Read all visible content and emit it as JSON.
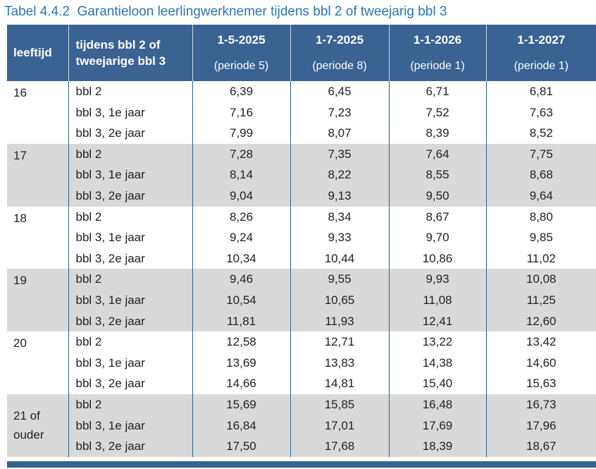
{
  "title": {
    "full": "Tabel 4.4.2  Garantieloon leerlingwerknemer tijdens bbl 2 of tweejarig bbl 3"
  },
  "colors": {
    "title_text": "#2e74b5",
    "header_bg": "#3a6292",
    "alt_row_bg": "#d9d9d9",
    "grid_line": "#2e6186",
    "bottom_bar": "#35618f"
  },
  "table": {
    "columns": [
      {
        "line1": "leeftijd",
        "line2": ""
      },
      {
        "line1": "tijdens bbl 2 of",
        "line2": "tweejarige bbl 3"
      },
      {
        "line1": "1-5-2025",
        "line2": "(periode 5)"
      },
      {
        "line1": "1-7-2025",
        "line2": "(periode 8)"
      },
      {
        "line1": "1-1-2026",
        "line2": "(periode 1)"
      },
      {
        "line1": "1-1-2027",
        "line2": "(periode 1)"
      }
    ],
    "groups": [
      {
        "age": "16",
        "rows": [
          {
            "label": "bbl 2",
            "values": [
              "6,39",
              "6,45",
              "6,71",
              "6,81"
            ]
          },
          {
            "label": "bbl 3, 1e jaar",
            "values": [
              "7,16",
              "7,23",
              "7,52",
              "7,63"
            ]
          },
          {
            "label": "bbl 3, 2e jaar",
            "values": [
              "7,99",
              "8,07",
              "8,39",
              "8,52"
            ]
          }
        ]
      },
      {
        "age": "17",
        "rows": [
          {
            "label": "bbl 2",
            "values": [
              "7,28",
              "7,35",
              "7,64",
              "7,75"
            ]
          },
          {
            "label": "bbl 3, 1e jaar",
            "values": [
              "8,14",
              "8,22",
              "8,55",
              "8,68"
            ]
          },
          {
            "label": "bbl 3, 2e jaar",
            "values": [
              "9,04",
              "9,13",
              "9,50",
              "9,64"
            ]
          }
        ]
      },
      {
        "age": "18",
        "rows": [
          {
            "label": "bbl 2",
            "values": [
              "8,26",
              "8,34",
              "8,67",
              "8,80"
            ]
          },
          {
            "label": "bbl 3, 1e jaar",
            "values": [
              "9,24",
              "9,33",
              "9,70",
              "9,85"
            ]
          },
          {
            "label": "bbl 3, 2e jaar",
            "values": [
              "10,34",
              "10,44",
              "10,86",
              "11,02"
            ]
          }
        ]
      },
      {
        "age": "19",
        "rows": [
          {
            "label": "bbl 2",
            "values": [
              "9,46",
              "9,55",
              "9,93",
              "10,08"
            ]
          },
          {
            "label": "bbl 3, 1e jaar",
            "values": [
              "10,54",
              "10,65",
              "11,08",
              "11,25"
            ]
          },
          {
            "label": "bbl 3, 2e jaar",
            "values": [
              "11,81",
              "11,93",
              "12,41",
              "12,60"
            ]
          }
        ]
      },
      {
        "age": "20",
        "rows": [
          {
            "label": "bbl 2",
            "values": [
              "12,58",
              "12,71",
              "13,22",
              "13,42"
            ]
          },
          {
            "label": "bbl 3, 1e jaar",
            "values": [
              "13,69",
              "13,83",
              "14,38",
              "14,60"
            ]
          },
          {
            "label": "bbl 3, 2e jaar",
            "values": [
              "14,66",
              "14,81",
              "15,40",
              "15,63"
            ]
          }
        ]
      },
      {
        "age": "21 of ouder",
        "rows": [
          {
            "label": "bbl 2",
            "values": [
              "15,69",
              "15,85",
              "16,48",
              "16,73"
            ]
          },
          {
            "label": "bbl 3, 1e jaar",
            "values": [
              "16,84",
              "17,01",
              "17,69",
              "17,96"
            ]
          },
          {
            "label": "bbl 3, 2e jaar",
            "values": [
              "17,50",
              "17,68",
              "18,39",
              "18,67"
            ]
          }
        ]
      }
    ]
  }
}
